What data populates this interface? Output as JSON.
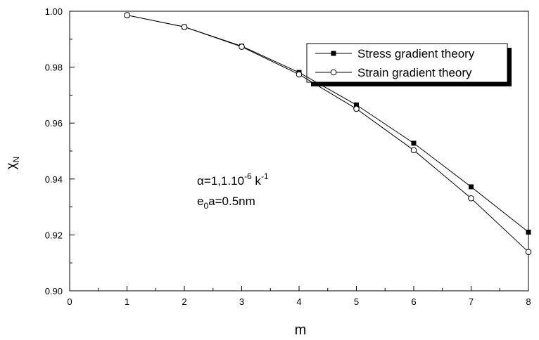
{
  "chart_data": {
    "type": "line",
    "xlabel": "m",
    "ylabel": {
      "main": "χ",
      "sub": "N"
    },
    "xlim": [
      0,
      8
    ],
    "ylim": [
      0.9,
      1.0
    ],
    "xticks": [
      "0",
      "1",
      "2",
      "3",
      "4",
      "5",
      "6",
      "7",
      "8"
    ],
    "yticks": [
      "0.90",
      "0.92",
      "0.94",
      "0.96",
      "0.98",
      "1.00"
    ],
    "grid": false,
    "legend_position": "top-right",
    "series": [
      {
        "name": "Stress gradient theory",
        "marker": "filled-square",
        "x": [
          1,
          2,
          3,
          4,
          5,
          6,
          7,
          8
        ],
        "y": [
          0.9986,
          0.9944,
          0.9875,
          0.9781,
          0.9665,
          0.9528,
          0.9372,
          0.921
        ]
      },
      {
        "name": "Strain gradient theory",
        "marker": "open-circle",
        "x": [
          1,
          2,
          3,
          4,
          5,
          6,
          7,
          8
        ],
        "y": [
          0.9986,
          0.9944,
          0.9873,
          0.9774,
          0.9651,
          0.9503,
          0.9331,
          0.9139
        ]
      }
    ],
    "annotations": [
      {
        "id": "alpha",
        "base": "α=1,1.10",
        "sup": "-6",
        "tail": " k",
        "sup2": "-1"
      },
      {
        "id": "e0a",
        "base": "e",
        "sub": "0",
        "tail": "a=0.5nm"
      }
    ]
  }
}
